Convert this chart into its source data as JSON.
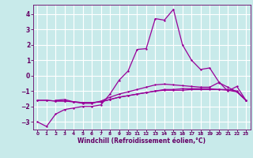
{
  "background_color": "#c8eaea",
  "grid_color": "#ffffff",
  "line_color": "#990099",
  "text_color": "#660066",
  "xlabel": "Windchill (Refroidissement éolien,°C)",
  "xlim": [
    -0.5,
    23.5
  ],
  "ylim": [
    -3.5,
    4.6
  ],
  "yticks": [
    -3,
    -2,
    -1,
    0,
    1,
    2,
    3,
    4
  ],
  "xticks": [
    0,
    1,
    2,
    3,
    4,
    5,
    6,
    7,
    8,
    9,
    10,
    11,
    12,
    13,
    14,
    15,
    16,
    17,
    18,
    19,
    20,
    21,
    22,
    23
  ],
  "series1_x": [
    0,
    1,
    2,
    3,
    4,
    5,
    6,
    7,
    8,
    9,
    10,
    11,
    12,
    13,
    14,
    15,
    16,
    17,
    18,
    19,
    20,
    21,
    22,
    23
  ],
  "series1_y": [
    -3.0,
    -3.3,
    -2.5,
    -2.2,
    -2.1,
    -2.0,
    -2.0,
    -1.9,
    -1.2,
    -0.3,
    0.3,
    1.7,
    1.75,
    3.7,
    3.6,
    4.3,
    2.0,
    1.0,
    0.4,
    0.5,
    -0.4,
    -1.0,
    -0.7,
    -1.6
  ],
  "series2_x": [
    2,
    3,
    4,
    5,
    6,
    7,
    8,
    9,
    10,
    11,
    12,
    13,
    14,
    15,
    16,
    17,
    18,
    19,
    20,
    21,
    22,
    23
  ],
  "series2_y": [
    -1.6,
    -1.55,
    -1.7,
    -1.8,
    -1.8,
    -1.65,
    -1.4,
    -1.2,
    -1.05,
    -0.9,
    -0.75,
    -0.6,
    -0.55,
    -0.6,
    -0.65,
    -0.7,
    -0.75,
    -0.75,
    -0.45,
    -0.75,
    -1.05,
    -1.6
  ],
  "series3_x": [
    0,
    1,
    2,
    3,
    4,
    5,
    6,
    7,
    8,
    9,
    10,
    11,
    12,
    13,
    14,
    15,
    16,
    17,
    18,
    19,
    20,
    21,
    22,
    23
  ],
  "series3_y": [
    -1.6,
    -1.6,
    -1.65,
    -1.65,
    -1.7,
    -1.75,
    -1.75,
    -1.7,
    -1.55,
    -1.4,
    -1.3,
    -1.2,
    -1.1,
    -1.0,
    -0.95,
    -0.95,
    -0.95,
    -0.9,
    -0.9,
    -0.9,
    -0.9,
    -0.9,
    -1.0,
    -1.6
  ],
  "series4_x": [
    0,
    1,
    2,
    3,
    4,
    5,
    6,
    7,
    8,
    9,
    10,
    11,
    12,
    13,
    14,
    15,
    16,
    17,
    18,
    19,
    20,
    21,
    22,
    23
  ],
  "series4_y": [
    -1.6,
    -1.6,
    -1.65,
    -1.65,
    -1.7,
    -1.75,
    -1.75,
    -1.7,
    -1.55,
    -1.4,
    -1.3,
    -1.2,
    -1.1,
    -1.0,
    -0.9,
    -0.9,
    -0.85,
    -0.85,
    -0.85,
    -0.85,
    -0.9,
    -0.95,
    -1.05,
    -1.6
  ]
}
